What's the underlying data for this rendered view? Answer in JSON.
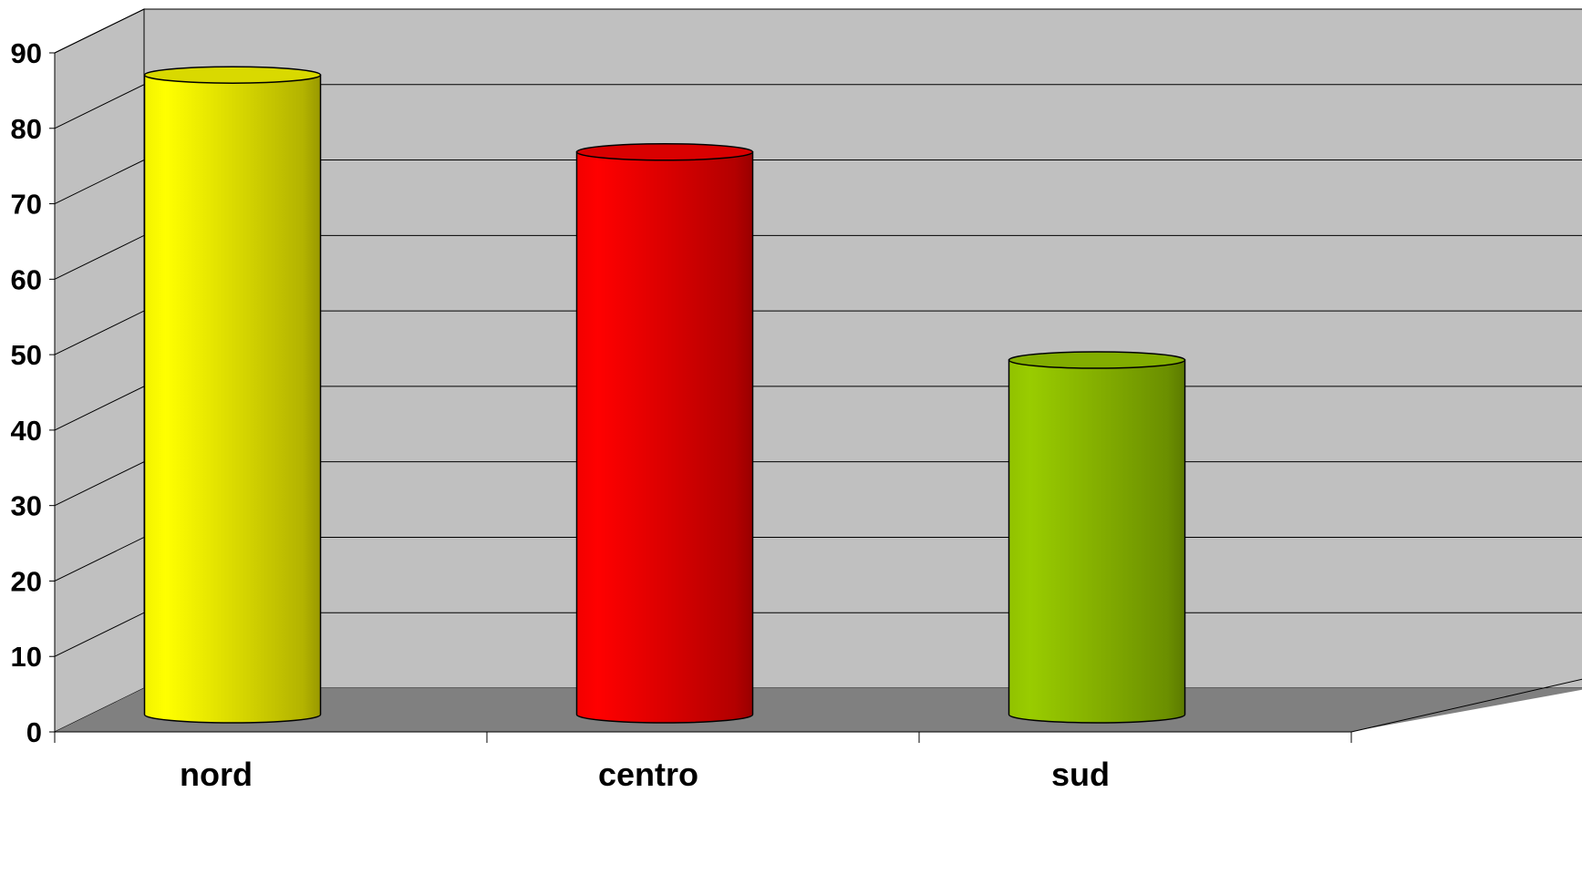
{
  "chart_data": {
    "type": "bar",
    "style": "3d-cylinder",
    "categories": [
      "nord",
      "centro",
      "sud"
    ],
    "values": [
      83,
      73,
      46
    ],
    "bar_colors": [
      "#ffff00",
      "#ff0000",
      "#99cc00"
    ],
    "title": "",
    "xlabel": "",
    "ylabel": "",
    "ylim": [
      0,
      90
    ],
    "yticks": [
      0,
      10,
      20,
      30,
      40,
      50,
      60,
      70,
      80,
      90
    ],
    "ytick_labels": [
      "0",
      "10",
      "20",
      "30",
      "40",
      "50",
      "60",
      "70",
      "80",
      "90"
    ],
    "grid": true,
    "legend": "none",
    "wall_color": "#c0c0c0",
    "floor_color": "#808080"
  }
}
